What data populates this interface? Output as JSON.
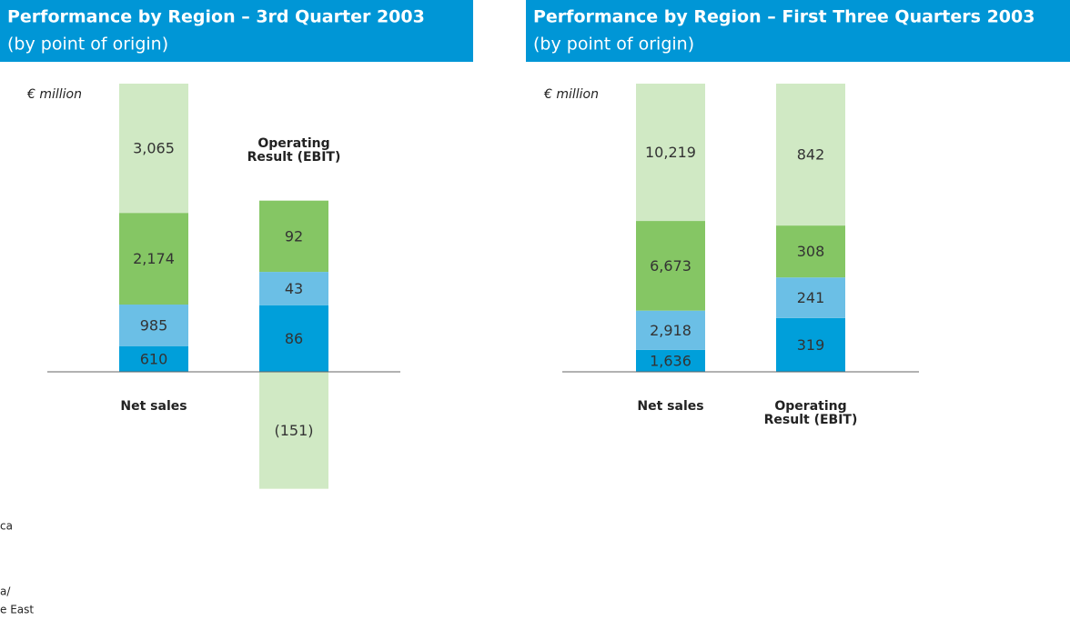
{
  "chart_data": [
    {
      "type": "bar",
      "stacked": true,
      "title": "Performance by Region – 3rd Quarter 2003",
      "subtitle": "(by point of origin)",
      "unit": "€ million",
      "categories": [
        "Net sales",
        "Operating Result (EBIT)"
      ],
      "series": [
        {
          "color": "#009fda",
          "values": [
            610,
            86
          ],
          "value_labels": [
            "610",
            "86"
          ]
        },
        {
          "color": "#6bbfe6",
          "values": [
            985,
            43
          ],
          "value_labels": [
            "985",
            "43"
          ]
        },
        {
          "color": "#85c664",
          "values": [
            2174,
            92
          ],
          "value_labels": [
            "2,174",
            "92"
          ]
        },
        {
          "color": "#d0e9c4",
          "values": [
            3065,
            -151
          ],
          "value_labels": [
            "3,065",
            "(151)"
          ]
        }
      ]
    },
    {
      "type": "bar",
      "stacked": true,
      "title": "Performance by Region – First Three Quarters 2003",
      "subtitle": "(by point of origin)",
      "unit": "€ million",
      "categories": [
        "Net sales",
        "Operating Result (EBIT)"
      ],
      "series": [
        {
          "color": "#009fda",
          "values": [
            1636,
            319
          ],
          "value_labels": [
            "1,636",
            "319"
          ]
        },
        {
          "color": "#6bbfe6",
          "values": [
            2918,
            241
          ],
          "value_labels": [
            "2,918",
            "241"
          ]
        },
        {
          "color": "#85c664",
          "values": [
            6673,
            308
          ],
          "value_labels": [
            "6,673",
            "308"
          ]
        },
        {
          "color": "#d0e9c4",
          "values": [
            10219,
            842
          ],
          "value_labels": [
            "10,219",
            "842"
          ]
        }
      ]
    }
  ],
  "legend_fragments": [
    "ca",
    "a/",
    "e East"
  ]
}
